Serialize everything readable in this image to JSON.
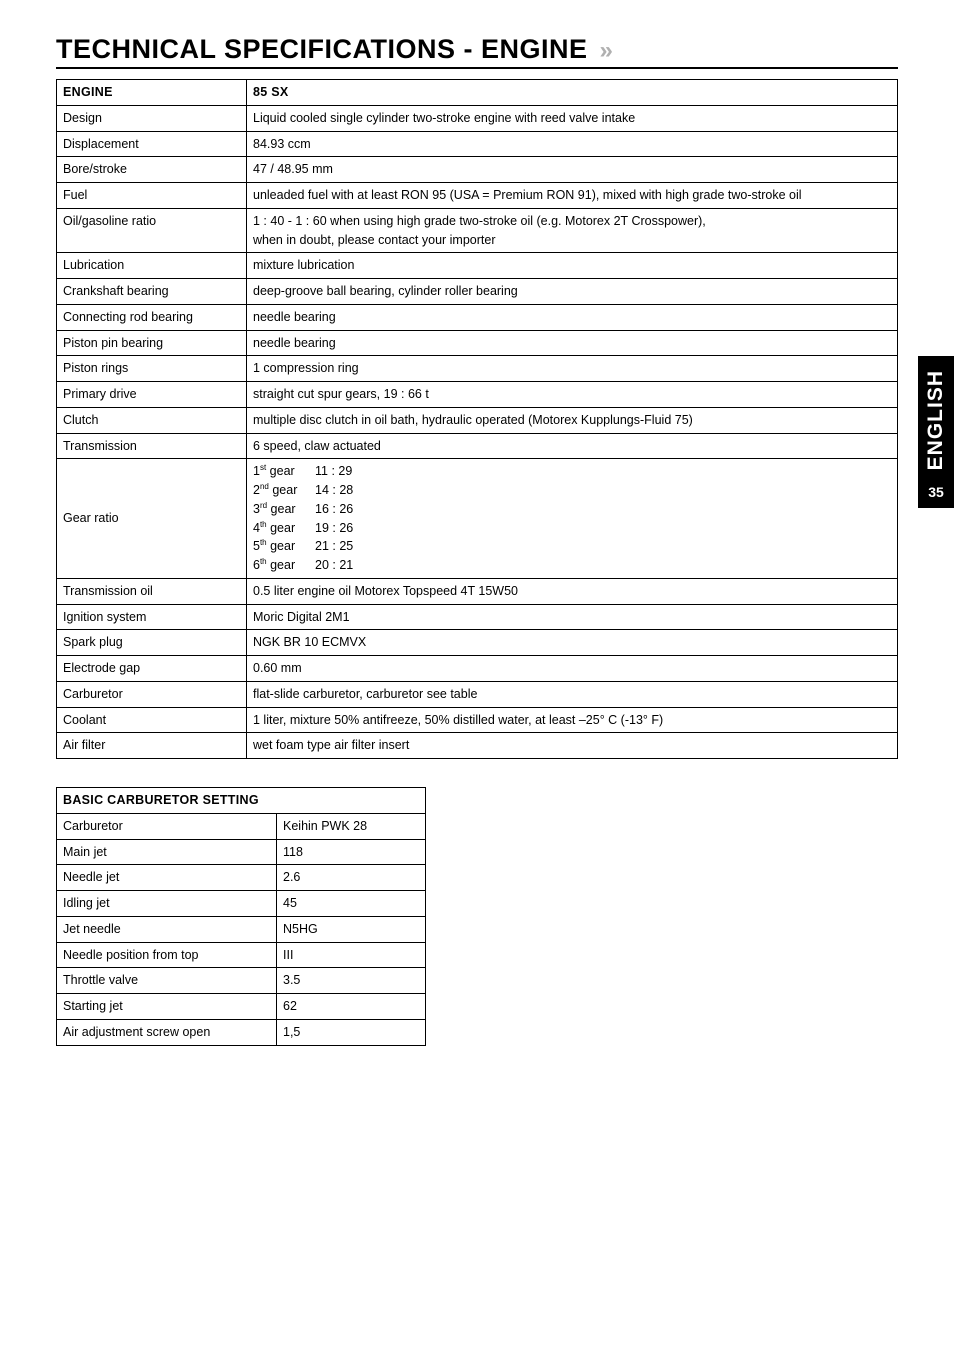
{
  "page": {
    "title": "TECHNICAL SPECIFICATIONS - ENGINE",
    "side_label": "ENGLISH",
    "page_number": "35"
  },
  "engine_table": {
    "header": {
      "col1": "ENGINE",
      "col2": "85 SX"
    },
    "rows": [
      {
        "label": "Design",
        "value": "Liquid cooled single cylinder two-stroke engine with reed valve intake"
      },
      {
        "label": "Displacement",
        "value": "84.93 ccm"
      },
      {
        "label": "Bore/stroke",
        "value": "47 / 48.95 mm"
      },
      {
        "label": "Fuel",
        "value": "unleaded fuel with at least RON 95 (USA = Premium RON 91), mixed with high grade two-stroke oil"
      },
      {
        "label": "Oil/gasoline ratio",
        "value": "1 : 40 - 1 : 60 when using high grade two-stroke oil (e.g. Motorex 2T Crosspower),\nwhen in doubt, please contact your importer"
      },
      {
        "label": "Lubrication",
        "value": "mixture lubrication"
      },
      {
        "label": "Crankshaft bearing",
        "value": "deep-groove ball bearing, cylinder roller bearing"
      },
      {
        "label": "Connecting rod bearing",
        "value": "needle bearing"
      },
      {
        "label": "Piston pin bearing",
        "value": "needle bearing"
      },
      {
        "label": "Piston rings",
        "value": "1 compression ring"
      },
      {
        "label": "Primary drive",
        "value": "straight cut spur gears, 19 : 66 t"
      },
      {
        "label": "Clutch",
        "value": "multiple disc clutch in oil bath, hydraulic operated (Motorex Kupplungs-Fluid 75)"
      },
      {
        "label": "Transmission",
        "value": "6 speed, claw actuated"
      }
    ],
    "gear_row": {
      "label": "Gear ratio",
      "gears": [
        {
          "ord": "1",
          "suf": "st",
          "word": "gear",
          "ratio": "11 : 29"
        },
        {
          "ord": "2",
          "suf": "nd",
          "word": "gear",
          "ratio": "14 : 28"
        },
        {
          "ord": "3",
          "suf": "rd",
          "word": "gear",
          "ratio": "16 : 26"
        },
        {
          "ord": "4",
          "suf": "th",
          "word": "gear",
          "ratio": "19 : 26"
        },
        {
          "ord": "5",
          "suf": "th",
          "word": "gear",
          "ratio": "21 : 25"
        },
        {
          "ord": "6",
          "suf": "th",
          "word": "gear",
          "ratio": "20 : 21"
        }
      ]
    },
    "rows2": [
      {
        "label": "Transmission oil",
        "value": "0.5 liter engine oil Motorex Topspeed 4T 15W50"
      },
      {
        "label": "Ignition system",
        "value": "Moric Digital 2M1"
      },
      {
        "label": "Spark plug",
        "value": "NGK BR 10 ECMVX"
      },
      {
        "label": "Electrode gap",
        "value": "0.60 mm"
      },
      {
        "label": "Carburetor",
        "value": "flat-slide carburetor, carburetor see table"
      },
      {
        "label": "Coolant",
        "value": "1 liter, mixture 50% antifreeze, 50% distilled water, at least –25° C (-13° F)"
      },
      {
        "label": "Air filter",
        "value": "wet foam type air filter insert"
      }
    ]
  },
  "carb_table": {
    "header": "BASIC CARBURETOR SETTING",
    "rows": [
      {
        "label": "Carburetor",
        "value": "Keihin PWK 28"
      },
      {
        "label": "Main jet",
        "value": "118"
      },
      {
        "label": "Needle jet",
        "value": "2.6"
      },
      {
        "label": "Idling jet",
        "value": "45"
      },
      {
        "label": "Jet needle",
        "value": "N5HG"
      },
      {
        "label": "Needle position from top",
        "value": "III"
      },
      {
        "label": "Throttle valve",
        "value": "3.5"
      },
      {
        "label": "Starting jet",
        "value": "62"
      },
      {
        "label": "Air adjustment screw open",
        "value": "1,5"
      }
    ]
  }
}
